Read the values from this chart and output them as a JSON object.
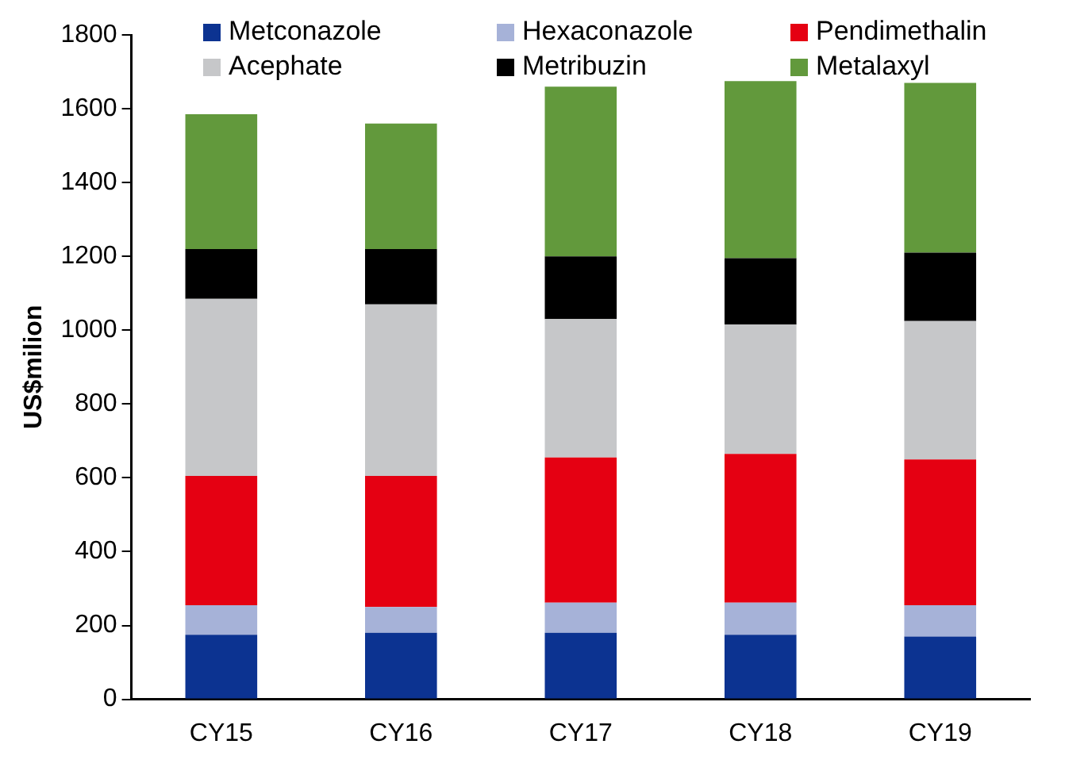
{
  "chart_data": {
    "type": "bar",
    "stacked": true,
    "ylabel": "US$milion",
    "categories": [
      "CY15",
      "CY16",
      "CY17",
      "CY18",
      "CY19"
    ],
    "series": [
      {
        "name": "Metconazole",
        "color": "#0c3391",
        "values": [
          175,
          180,
          180,
          175,
          170
        ]
      },
      {
        "name": "Hexaconazole",
        "color": "#a6b2d8",
        "values": [
          80,
          70,
          82,
          87,
          85
        ]
      },
      {
        "name": "Pendimethalin",
        "color": "#e50012",
        "values": [
          350,
          355,
          393,
          403,
          395
        ]
      },
      {
        "name": "Acephate",
        "color": "#c6c7c9",
        "values": [
          480,
          465,
          375,
          350,
          375
        ]
      },
      {
        "name": "Metribuzin",
        "color": "#000000",
        "values": [
          135,
          150,
          170,
          180,
          185
        ]
      },
      {
        "name": "Metalaxyl",
        "color": "#62993c",
        "values": [
          365,
          340,
          460,
          480,
          460
        ]
      }
    ],
    "ylim": [
      0,
      1800
    ],
    "yticks": [
      0,
      200,
      400,
      600,
      800,
      1000,
      1200,
      1400,
      1600,
      1800
    ],
    "grid": false,
    "legend": "top"
  }
}
